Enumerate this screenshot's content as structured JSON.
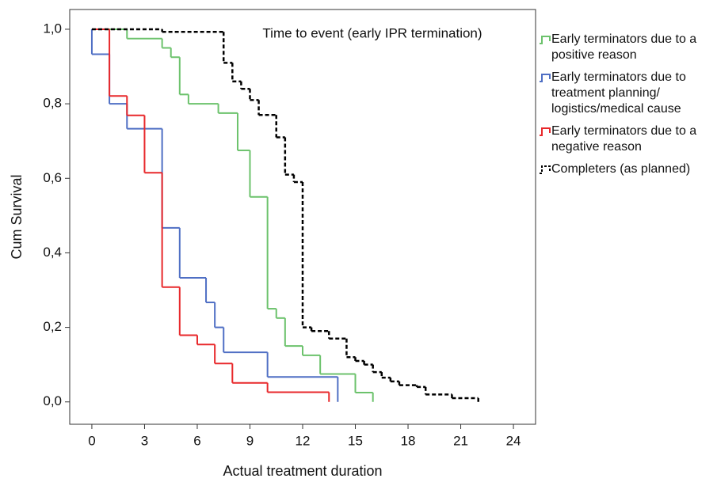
{
  "chart_data": {
    "type": "step",
    "annotation": "Time to event (early IPR termination)",
    "x_label": "Actual treatment duration",
    "y_label": "Cum Survival",
    "xlim": [
      -1.26,
      25.26
    ],
    "ylim": [
      -0.06,
      1.053
    ],
    "xticks": [
      0,
      3,
      6,
      9,
      12,
      15,
      18,
      21,
      24
    ],
    "yticks": [
      {
        "value": 0,
        "label": "0,0"
      },
      {
        "value": 0.2,
        "label": "0,2"
      },
      {
        "value": 0.4,
        "label": "0,4"
      },
      {
        "value": 0.6,
        "label": "0,6"
      },
      {
        "value": 0.8,
        "label": "0,8"
      },
      {
        "value": 1,
        "label": "1,0"
      }
    ],
    "series": [
      {
        "name": "Early terminators due to a positive reason",
        "color": "#6cc26c",
        "dashed": false,
        "x": [
          0,
          2,
          4,
          4.5,
          5,
          5.5,
          7.2,
          8.3,
          9,
          10,
          10.5,
          11,
          12,
          13,
          15,
          16
        ],
        "values": [
          1,
          0.975,
          0.95,
          0.925,
          0.825,
          0.8,
          0.775,
          0.675,
          0.55,
          0.25,
          0.225,
          0.15,
          0.125,
          0.075,
          0.025,
          0
        ]
      },
      {
        "name": "Early terminators due to treatment planning/ logistics/medical cause",
        "color": "#4f6fc4",
        "dashed": false,
        "x": [
          0,
          0,
          1,
          2,
          4,
          5,
          6.5,
          7,
          7.5,
          10,
          14
        ],
        "values": [
          1,
          0.933,
          0.8,
          0.733,
          0.467,
          0.333,
          0.267,
          0.2,
          0.133,
          0.067,
          0
        ]
      },
      {
        "name": "Early terminators due to a negative reason",
        "color": "#e8282b",
        "dashed": false,
        "x": [
          0,
          1,
          2,
          3,
          4,
          5,
          6,
          7,
          8,
          10,
          13.5
        ],
        "values": [
          1,
          0.821,
          0.769,
          0.615,
          0.308,
          0.179,
          0.154,
          0.103,
          0.051,
          0.026,
          0
        ]
      },
      {
        "name": "Completers (as planned)",
        "color": "#000000",
        "dashed": true,
        "x": [
          0,
          4,
          7.5,
          8,
          8.5,
          9,
          9.5,
          10.5,
          11,
          11.5,
          12,
          12.5,
          13.5,
          14.5,
          15,
          15.5,
          16,
          16.5,
          17,
          17.5,
          18.5,
          19,
          20.5,
          22
        ],
        "values": [
          1,
          0.993,
          0.91,
          0.86,
          0.84,
          0.81,
          0.77,
          0.71,
          0.61,
          0.59,
          0.2,
          0.19,
          0.17,
          0.12,
          0.11,
          0.1,
          0.08,
          0.065,
          0.055,
          0.045,
          0.04,
          0.02,
          0.01,
          0
        ]
      }
    ]
  }
}
